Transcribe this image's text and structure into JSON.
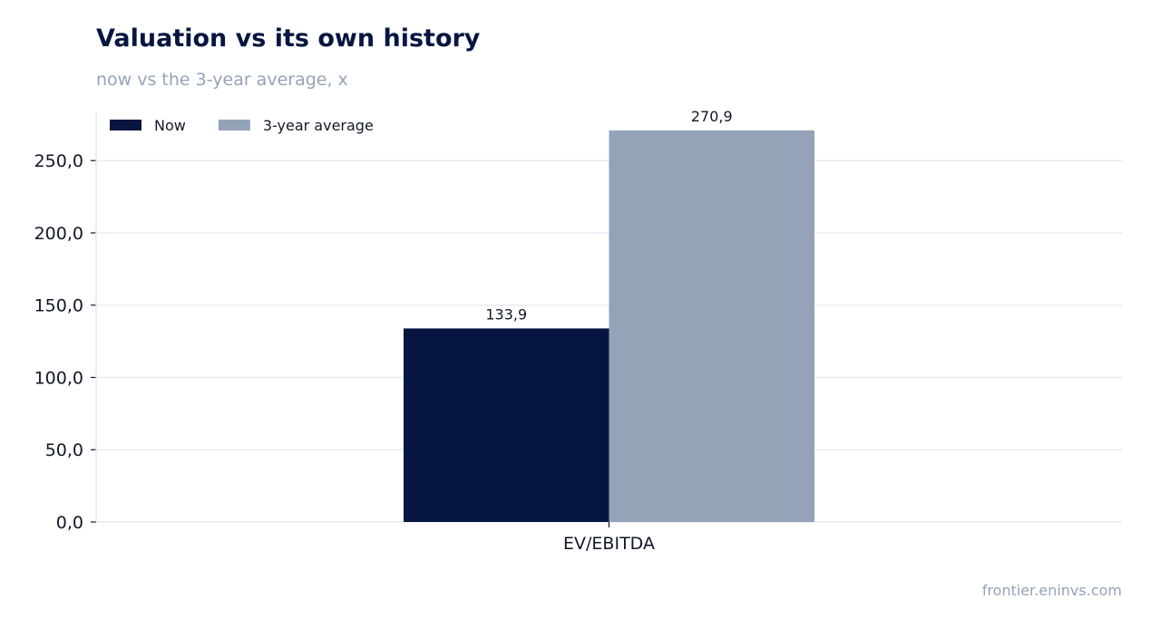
{
  "chart_data": {
    "type": "bar",
    "title": "Valuation vs its own history",
    "subtitle": "now vs the 3-year average, x",
    "categories": [
      "EV/EBITDA"
    ],
    "series": [
      {
        "name": "Now",
        "values": [
          133.9
        ],
        "labels": [
          "133,9"
        ],
        "color": "#061640"
      },
      {
        "name": "3-year average",
        "values": [
          270.9
        ],
        "labels": [
          "270,9"
        ],
        "color": "#94a3b8"
      }
    ],
    "ylim": [
      0,
      284
    ],
    "yticks": [
      0,
      50,
      100,
      150,
      200,
      250
    ],
    "ytick_labels": [
      "0,0",
      "50,0",
      "100,0",
      "150,0",
      "200,0",
      "250,0"
    ],
    "grid": true,
    "legend": "top-left"
  },
  "source": "frontier.eninvs.com"
}
